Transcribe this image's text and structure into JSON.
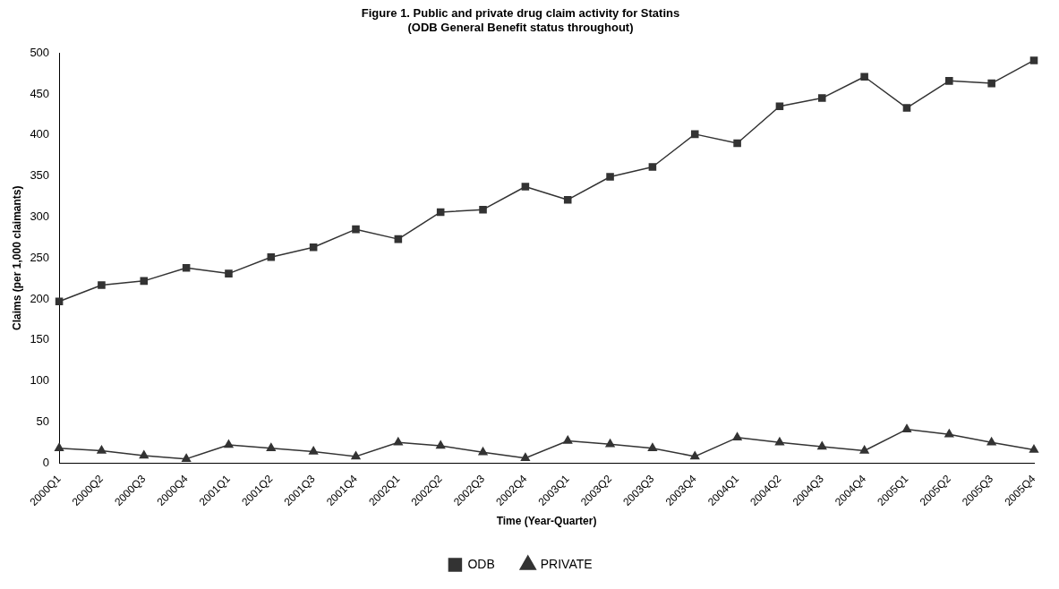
{
  "chart_data": {
    "type": "line",
    "title": [
      "Figure 1. Public and private drug claim activity for Statins",
      "(ODB General Benefit status throughout)"
    ],
    "xlabel": "Time (Year-Quarter)",
    "ylabel": "Claims (per 1,000 claimants)",
    "categories": [
      "2000Q1",
      "2000Q2",
      "2000Q3",
      "2000Q4",
      "2001Q1",
      "2001Q2",
      "2001Q3",
      "2001Q4",
      "2002Q1",
      "2002Q2",
      "2002Q3",
      "2002Q4",
      "2003Q1",
      "2003Q2",
      "2003Q3",
      "2003Q4",
      "2004Q1",
      "2004Q2",
      "2004Q3",
      "2004Q4",
      "2005Q1",
      "2005Q2",
      "2005Q3",
      "2005Q4"
    ],
    "series": [
      {
        "name": "ODB",
        "color": "#333333",
        "marker": "square",
        "values": [
          197,
          217,
          222,
          238,
          231,
          251,
          263,
          285,
          273,
          306,
          309,
          337,
          321,
          349,
          361,
          401,
          390,
          435,
          445,
          471,
          433,
          466,
          463,
          491
        ]
      },
      {
        "name": "PRIVATE",
        "color": "#333333",
        "marker": "triangle",
        "values": [
          18,
          15,
          9,
          5,
          22,
          18,
          14,
          8,
          25,
          21,
          13,
          6,
          27,
          23,
          18,
          8,
          31,
          25,
          20,
          15,
          41,
          35,
          25,
          16
        ]
      }
    ],
    "ylim": [
      0,
      500
    ],
    "yticks": [
      0,
      50,
      100,
      150,
      200,
      250,
      300,
      350,
      400,
      450,
      500
    ],
    "grid": false,
    "legend": "bottom",
    "line_style": "solid"
  }
}
